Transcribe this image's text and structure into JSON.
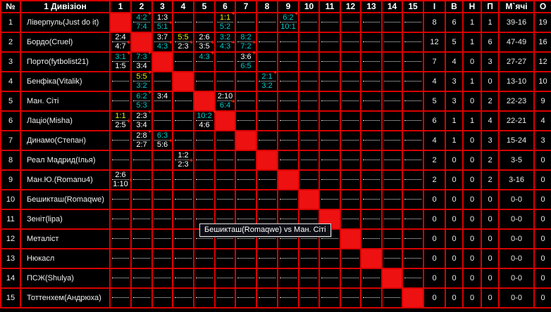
{
  "header": {
    "num": "№",
    "division": "1 Дивізіон",
    "match_cols": [
      "1",
      "2",
      "3",
      "4",
      "5",
      "6",
      "7",
      "8",
      "9",
      "10",
      "11",
      "12",
      "13",
      "14",
      "15"
    ],
    "stats_cols": [
      "І",
      "В",
      "Н",
      "П",
      "М`ячі",
      "О"
    ],
    "stats_names": [
      "games",
      "wins",
      "draws",
      "losses",
      "goals",
      "points"
    ]
  },
  "colors": {
    "grid_red": "#d90000",
    "diagonal_red": "#ee1111",
    "win_cyan": "#00cbcb",
    "draw_yellow": "#ecec00",
    "loss_white": "#ffffff",
    "marker_red": "#ff2000"
  },
  "tooltip": {
    "text": "Бешикташ(Romaqwe) vs Ман. Сіті"
  },
  "teams": [
    {
      "num": "1",
      "name": "Ліверпуль(Just do it)",
      "results": {
        "2": [
          {
            "s": "4:2",
            "c": "cyan",
            "m": true
          },
          {
            "s": "7:4",
            "c": "cyan",
            "m": false
          }
        ],
        "3": [
          {
            "s": "1:3",
            "c": "white",
            "m": false
          },
          {
            "s": "5:1",
            "c": "cyan",
            "m": true
          }
        ],
        "6": [
          {
            "s": "1:1",
            "c": "yellow",
            "m": true
          },
          {
            "s": "5:2",
            "c": "cyan",
            "m": false
          }
        ],
        "9": [
          {
            "s": "6:2",
            "c": "cyan",
            "m": true
          },
          {
            "s": "10:1",
            "c": "cyan",
            "m": false
          }
        ]
      },
      "stats": [
        "8",
        "6",
        "1",
        "1",
        "39-16",
        "19"
      ]
    },
    {
      "num": "2",
      "name": "Бордо(Cruel)",
      "results": {
        "1": [
          {
            "s": "2:4",
            "c": "white",
            "m": false
          },
          {
            "s": "4:7",
            "c": "white",
            "m": true
          }
        ],
        "3": [
          {
            "s": "3:7",
            "c": "white",
            "m": false
          },
          {
            "s": "4:3",
            "c": "cyan",
            "m": true
          }
        ],
        "4": [
          {
            "s": "5:5",
            "c": "yellow",
            "m": false
          },
          {
            "s": "2:3",
            "c": "white",
            "m": true
          }
        ],
        "5": [
          {
            "s": "2:6",
            "c": "white",
            "m": false
          },
          {
            "s": "3:5",
            "c": "white",
            "m": true
          }
        ],
        "6": [
          {
            "s": "3:2",
            "c": "cyan",
            "m": false
          },
          {
            "s": "4:3",
            "c": "cyan",
            "m": true
          }
        ],
        "7": [
          {
            "s": "8:2",
            "c": "cyan",
            "m": false
          },
          {
            "s": "7:2",
            "c": "cyan",
            "m": true
          }
        ]
      },
      "stats": [
        "12",
        "5",
        "1",
        "6",
        "47-49",
        "16"
      ]
    },
    {
      "num": "3",
      "name": "Порто(fytbolist21)",
      "results": {
        "1": [
          {
            "s": "3:1",
            "c": "cyan",
            "m": true
          },
          {
            "s": "1:5",
            "c": "white",
            "m": false
          }
        ],
        "2": [
          {
            "s": "7:3",
            "c": "cyan",
            "m": true
          },
          {
            "s": "3:4",
            "c": "white",
            "m": false
          }
        ],
        "5": [
          {
            "s": "4:3",
            "c": "cyan",
            "m": true
          },
          null
        ],
        "7": [
          {
            "s": "3:6",
            "c": "white",
            "m": true
          },
          {
            "s": "6:5",
            "c": "cyan",
            "m": false
          }
        ]
      },
      "stats": [
        "7",
        "4",
        "0",
        "3",
        "27-27",
        "12"
      ]
    },
    {
      "num": "4",
      "name": "Бенфіка(Vitalik)",
      "results": {
        "2": [
          {
            "s": "5:5",
            "c": "yellow",
            "m": true
          },
          {
            "s": "3:2",
            "c": "cyan",
            "m": false
          }
        ],
        "8": [
          {
            "s": "2:1",
            "c": "cyan",
            "m": true
          },
          {
            "s": "3:2",
            "c": "cyan",
            "m": false
          }
        ]
      },
      "stats": [
        "4",
        "3",
        "1",
        "0",
        "13-10",
        "10"
      ]
    },
    {
      "num": "5",
      "name": "Ман. Сіті",
      "results": {
        "2": [
          {
            "s": "6:2",
            "c": "cyan",
            "m": true
          },
          {
            "s": "5:3",
            "c": "cyan",
            "m": false
          }
        ],
        "3": [
          {
            "s": "3:4",
            "c": "white",
            "m": false
          },
          null
        ],
        "6": [
          {
            "s": "2:10",
            "c": "white",
            "m": false
          },
          {
            "s": "6:4",
            "c": "cyan",
            "m": true
          }
        ]
      },
      "stats": [
        "5",
        "3",
        "0",
        "2",
        "22-23",
        "9"
      ]
    },
    {
      "num": "6",
      "name": "Лаціо(Misha)",
      "results": {
        "1": [
          {
            "s": "1:1",
            "c": "yellow",
            "m": false
          },
          {
            "s": "2:5",
            "c": "white",
            "m": true
          }
        ],
        "2": [
          {
            "s": "2:3",
            "c": "white",
            "m": true
          },
          {
            "s": "3:4",
            "c": "white",
            "m": false
          }
        ],
        "5": [
          {
            "s": "10:2",
            "c": "cyan",
            "m": true
          },
          {
            "s": "4:6",
            "c": "white",
            "m": false
          }
        ]
      },
      "stats": [
        "6",
        "1",
        "1",
        "4",
        "22-21",
        "4"
      ]
    },
    {
      "num": "7",
      "name": "Динамо(Степан)",
      "results": {
        "2": [
          {
            "s": "2:8",
            "c": "white",
            "m": true
          },
          {
            "s": "2:7",
            "c": "white",
            "m": false
          }
        ],
        "3": [
          {
            "s": "6:3",
            "c": "cyan",
            "m": false
          },
          {
            "s": "5:6",
            "c": "white",
            "m": true
          }
        ]
      },
      "stats": [
        "4",
        "1",
        "0",
        "3",
        "15-24",
        "3"
      ]
    },
    {
      "num": "8",
      "name": "Реал Мадрид(Ілья)",
      "results": {
        "4": [
          {
            "s": "1:2",
            "c": "white",
            "m": false
          },
          {
            "s": "2:3",
            "c": "white",
            "m": true
          }
        ]
      },
      "stats": [
        "2",
        "0",
        "0",
        "2",
        "3-5",
        "0"
      ]
    },
    {
      "num": "9",
      "name": "Ман.Ю.(Romanu4)",
      "results": {
        "1": [
          {
            "s": "2:6",
            "c": "white",
            "m": false
          },
          {
            "s": "1:10",
            "c": "white",
            "m": true
          }
        ]
      },
      "stats": [
        "2",
        "0",
        "0",
        "2",
        "3-16",
        "0"
      ]
    },
    {
      "num": "10",
      "name": "Бешикташ(Romaqwe)",
      "results": {},
      "stats": [
        "0",
        "0",
        "0",
        "0",
        "0-0",
        "0"
      ]
    },
    {
      "num": "11",
      "name": "Зеніт(lipa)",
      "results": {},
      "stats": [
        "0",
        "0",
        "0",
        "0",
        "0-0",
        "0"
      ]
    },
    {
      "num": "12",
      "name": "Металіст",
      "results": {},
      "stats": [
        "0",
        "0",
        "0",
        "0",
        "0-0",
        "0"
      ]
    },
    {
      "num": "13",
      "name": "Нюкасл",
      "results": {},
      "stats": [
        "0",
        "0",
        "0",
        "0",
        "0-0",
        "0"
      ]
    },
    {
      "num": "14",
      "name": "ПСЖ(Shulya)",
      "results": {},
      "stats": [
        "0",
        "0",
        "0",
        "0",
        "0-0",
        "0"
      ]
    },
    {
      "num": "15",
      "name": "Тоттенхем(Андрюха)",
      "results": {},
      "stats": [
        "0",
        "0",
        "0",
        "0",
        "0-0",
        "0"
      ]
    }
  ]
}
